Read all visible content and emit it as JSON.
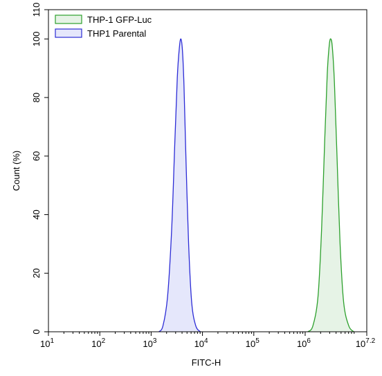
{
  "chart_data": {
    "type": "area",
    "xlabel": "FITC-H",
    "ylabel": "Count (%)",
    "x_scale": "log10",
    "xlim_log10": [
      1,
      7.2
    ],
    "ylim": [
      0,
      110
    ],
    "y_ticks": [
      0,
      20,
      40,
      60,
      80,
      100,
      110
    ],
    "x_ticks": [
      {
        "exp": 1,
        "base": "10",
        "sup": "1"
      },
      {
        "exp": 2,
        "base": "10",
        "sup": "2"
      },
      {
        "exp": 3,
        "base": "10",
        "sup": "3"
      },
      {
        "exp": 4,
        "base": "10",
        "sup": "4"
      },
      {
        "exp": 5,
        "base": "10",
        "sup": "5"
      },
      {
        "exp": 6,
        "base": "10",
        "sup": "6"
      },
      {
        "exp": 7.2,
        "base": "10",
        "sup": "7.2"
      }
    ],
    "legend_position": "top-left",
    "series": [
      {
        "name": "THP-1 GFP-Luc",
        "stroke": "#2ca02c",
        "fill": "#e6f3e6",
        "log10_x": [
          6.05,
          6.15,
          6.25,
          6.32,
          6.38,
          6.43,
          6.47,
          6.5,
          6.53,
          6.57,
          6.62,
          6.68,
          6.75,
          6.85,
          6.95
        ],
        "y": [
          0,
          2,
          12,
          35,
          65,
          88,
          98,
          100,
          97,
          85,
          60,
          30,
          10,
          2,
          0
        ]
      },
      {
        "name": "THP1 Parental",
        "stroke": "#2b2bd6",
        "fill": "#e5e7fb",
        "log10_x": [
          3.15,
          3.23,
          3.32,
          3.4,
          3.46,
          3.51,
          3.55,
          3.58,
          3.61,
          3.64,
          3.68,
          3.73,
          3.79,
          3.87,
          3.96
        ],
        "y": [
          0,
          2,
          12,
          35,
          64,
          87,
          97,
          100,
          96,
          84,
          58,
          30,
          10,
          2,
          0
        ]
      }
    ]
  }
}
